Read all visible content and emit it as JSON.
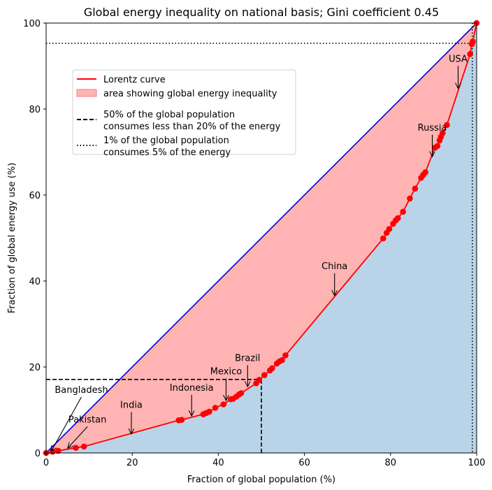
{
  "chart_data": {
    "type": "line",
    "title": "Global energy inequality on national basis; Gini coefficient 0.45",
    "xlabel": "Fraction of global population (%)",
    "ylabel": "Fraction of global energy use (%)",
    "xlim": [
      0,
      100
    ],
    "ylim": [
      0,
      100
    ],
    "x_ticks": [
      0,
      20,
      40,
      60,
      80,
      100
    ],
    "y_ticks": [
      0,
      20,
      40,
      60,
      80,
      100
    ],
    "grid": false,
    "legend_position": "upper-left",
    "legend": [
      {
        "label": "Lorentz curve",
        "style": "line",
        "color": "#ff0000"
      },
      {
        "label": "area showing global energy inequality",
        "style": "patch",
        "color": "#ffb3b3"
      },
      {
        "label": "50% of the global population\nconsumes less than 20% of the energy",
        "style": "dashed",
        "color": "#000000"
      },
      {
        "label": "1% of the global population\nconsumes 5% of the energy",
        "style": "dotted",
        "color": "#000000"
      }
    ],
    "lorentz_curve": {
      "color": "#ff0000",
      "x": [
        0,
        1.5,
        2.8,
        6.9,
        8.8,
        30.8,
        31.5,
        36.5,
        37.2,
        37.9,
        39.3,
        41.2,
        42.9,
        43.4,
        44.2,
        44.8,
        45.3,
        48.8,
        49.5,
        50.7,
        52.0,
        52.5,
        53.6,
        54.2,
        54.8,
        55.6,
        78.3,
        79.1,
        79.7,
        80.6,
        81.2,
        81.7,
        82.9,
        84.5,
        85.7,
        87.1,
        87.6,
        88.1,
        90.3,
        90.9,
        91.4,
        91.7,
        92.1,
        93.1,
        98.5,
        98.9,
        99.0,
        99.1,
        100
      ],
      "y": [
        0,
        0.3,
        0.5,
        1.2,
        1.5,
        7.6,
        7.7,
        9.0,
        9.3,
        9.6,
        10.5,
        11.3,
        12.5,
        12.6,
        13.1,
        13.6,
        13.9,
        16.2,
        17.0,
        18.1,
        19.2,
        19.7,
        20.8,
        21.3,
        21.6,
        22.7,
        49.9,
        51.2,
        52.1,
        53.3,
        54.1,
        54.6,
        56.1,
        59.2,
        61.5,
        64.0,
        64.7,
        65.3,
        71.0,
        71.4,
        72.7,
        73.5,
        74.4,
        76.3,
        92.8,
        95.1,
        95.4,
        95.7,
        100
      ]
    },
    "diagonal": {
      "color": "#0000cc",
      "x": [
        0,
        100
      ],
      "y": [
        0,
        100
      ]
    },
    "fill_colors": {
      "inequality_area": "#ffb3b3",
      "under_curve": "#b9d4e8"
    },
    "reference_lines": [
      {
        "style": "dashed",
        "x": 50,
        "y": 17.1
      },
      {
        "style": "dotted",
        "x": 99,
        "y": 95.3
      }
    ],
    "annotations": [
      {
        "label": "Bangladesh",
        "x": 1.2,
        "y": 0.4,
        "text_x": 8.2,
        "text_y": 14.0
      },
      {
        "label": "Pakistan",
        "x": 5.0,
        "y": 1.1,
        "text_x": 9.6,
        "text_y": 7.1
      },
      {
        "label": "India",
        "x": 19.8,
        "y": 4.4,
        "text_x": 19.8,
        "text_y": 10.5
      },
      {
        "label": "Indonesia",
        "x": 33.8,
        "y": 8.6,
        "text_x": 33.8,
        "text_y": 14.5
      },
      {
        "label": "Mexico",
        "x": 41.8,
        "y": 12.2,
        "text_x": 41.8,
        "text_y": 18.3
      },
      {
        "label": "Brazil",
        "x": 46.8,
        "y": 15.4,
        "text_x": 46.8,
        "text_y": 21.4
      },
      {
        "label": "China",
        "x": 67.0,
        "y": 36.6,
        "text_x": 67.0,
        "text_y": 42.8
      },
      {
        "label": "Russia",
        "x": 89.7,
        "y": 68.9,
        "text_x": 89.7,
        "text_y": 75.0
      },
      {
        "label": "USA",
        "x": 95.7,
        "y": 84.8,
        "text_x": 95.7,
        "text_y": 91.0
      }
    ]
  }
}
